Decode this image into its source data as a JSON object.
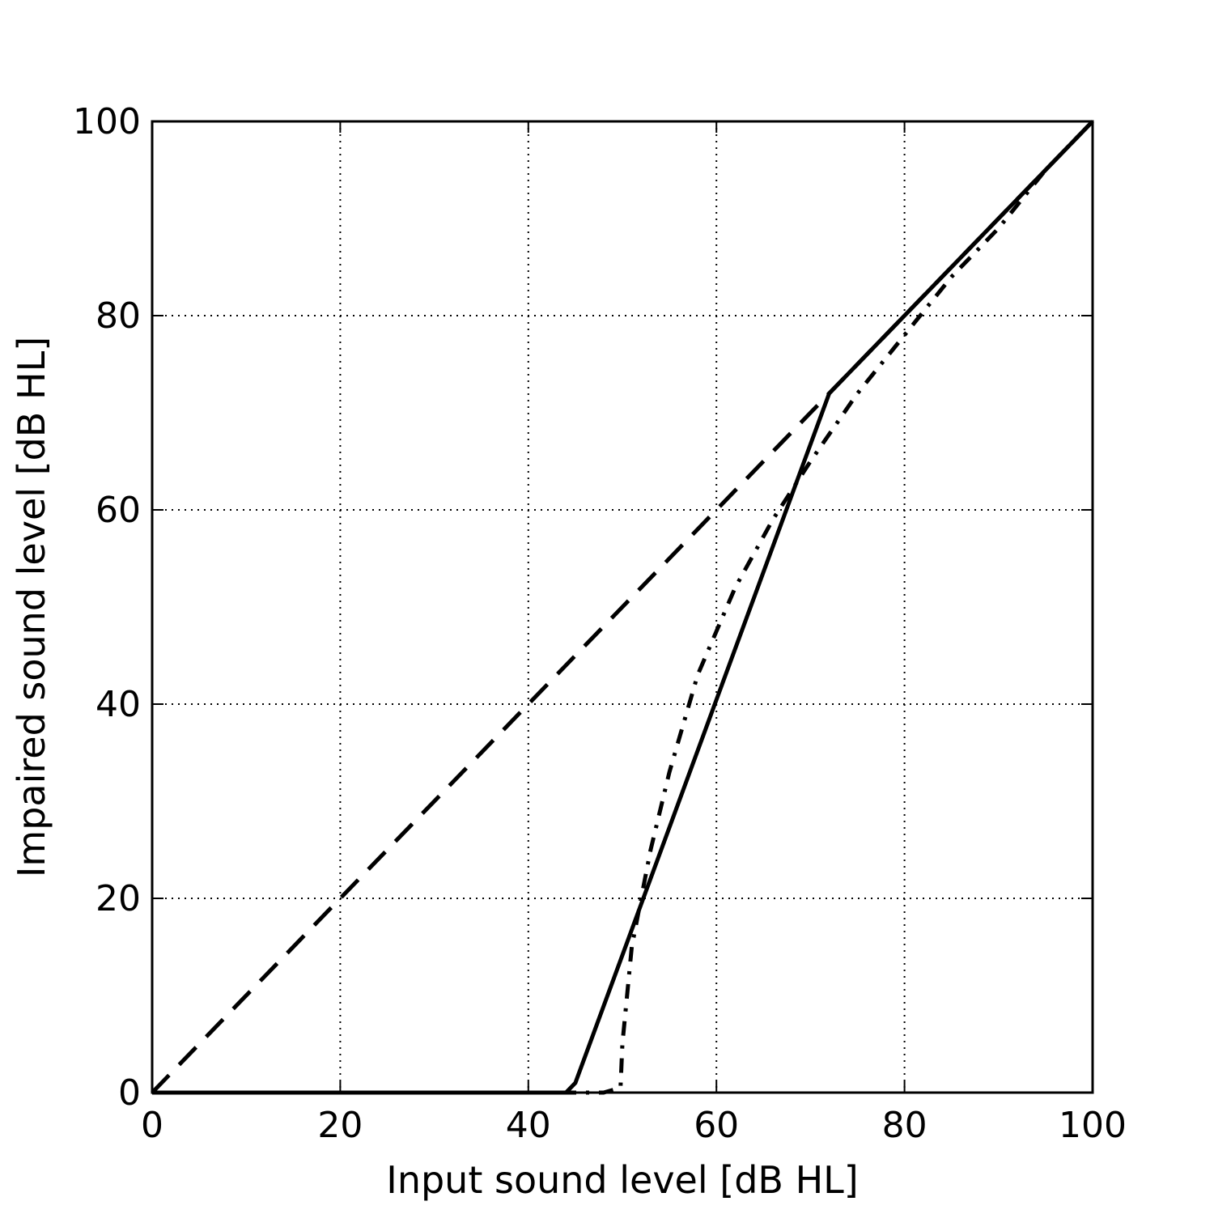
{
  "chart_data": {
    "type": "line",
    "title": "",
    "xlabel": "Input sound level [dB HL]",
    "ylabel": "Impaired sound level [dB HL]",
    "xlim": [
      0,
      100
    ],
    "ylim": [
      0,
      100
    ],
    "xticks": [
      "0",
      "20",
      "40",
      "60",
      "80",
      "100"
    ],
    "yticks": [
      "0",
      "20",
      "40",
      "60",
      "80",
      "100"
    ],
    "grid": true,
    "legend": "none",
    "series": [
      {
        "style": "dashed",
        "color": "#000000",
        "x": [
          0,
          72,
          100
        ],
        "y": [
          0,
          72,
          100
        ]
      },
      {
        "style": "solid",
        "color": "#000000",
        "x": [
          0,
          44,
          45,
          72,
          100
        ],
        "y": [
          0,
          0,
          1,
          72,
          100
        ]
      },
      {
        "style": "dash-dot",
        "color": "#000000",
        "x": [
          0,
          48,
          49.8,
          50,
          50.5,
          51,
          52,
          53,
          55,
          58,
          62,
          66,
          70,
          75,
          80,
          85,
          90,
          95,
          100
        ],
        "y": [
          0,
          0,
          0.5,
          5,
          10,
          15,
          20,
          25,
          33,
          43,
          52,
          59,
          65,
          72,
          78,
          84,
          89,
          95,
          100
        ]
      }
    ]
  }
}
